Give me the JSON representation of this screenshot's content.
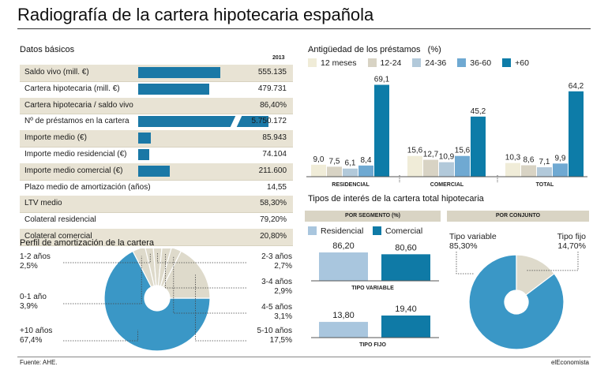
{
  "title": "Radiografía de la cartera hipotecaria española",
  "basic": {
    "heading": "Datos básicos",
    "year": "2013",
    "rows": [
      {
        "label": "Saldo vivo (mill. €)",
        "value": "555.135",
        "bar": 555135,
        "max": 555135,
        "shaded": true
      },
      {
        "label": "Cartera hipotecaria (mill. €)",
        "value": "479.731",
        "bar": 479731,
        "max": 555135,
        "shaded": false
      },
      {
        "label": "Cartera hipotecaria / saldo vivo",
        "value": "86,40%",
        "shaded": true
      },
      {
        "label": "Nº de préstamos en la cartera",
        "value": "5.750.172",
        "bar": 5750172,
        "broken": true,
        "shaded": false
      },
      {
        "label": "Importe medio (€)",
        "value": "85.943",
        "bar": 85943,
        "max": 555135,
        "shaded": true
      },
      {
        "label": "Importe medio residencial (€)",
        "value": "74.104",
        "bar": 74104,
        "max": 555135,
        "shaded": false
      },
      {
        "label": "Importe medio comercial (€)",
        "value": "211.600",
        "bar": 211600,
        "max": 555135,
        "shaded": true
      },
      {
        "label": "Plazo medio de amortización (años)",
        "value": "14,55",
        "shaded": false
      },
      {
        "label": "LTV medio",
        "value": "58,30%",
        "shaded": true
      },
      {
        "label": "Colateral residencial",
        "value": "79,20%",
        "shaded": false
      },
      {
        "label": "Colateral comercial",
        "value": "20,80%",
        "shaded": true
      }
    ]
  },
  "colors": {
    "bar": "#1a78a6",
    "shade": "#e8e3d4",
    "c1": "#f0ecd8",
    "c2": "#d8d3c4",
    "c3": "#b2c9da",
    "c4": "#6fa9d2",
    "c5": "#0d7ca8",
    "residencial": "#a9c6de",
    "comercial": "#0f7aa6",
    "pie_main": "#3a97c6",
    "pie_beige": "#dedacb"
  },
  "chart_data": [
    {
      "type": "bar",
      "title": "Antigüedad de los préstamos",
      "title_unit": "(%)",
      "categories": [
        "RESIDENCIAL",
        "COMERCIAL",
        "TOTAL"
      ],
      "series": [
        {
          "name": "12 meses",
          "values": [
            9.0,
            15.6,
            10.3
          ],
          "labels": [
            "9,0",
            "15,6",
            "10,3"
          ]
        },
        {
          "name": "12-24",
          "values": [
            7.5,
            12.7,
            8.6
          ],
          "labels": [
            "7,5",
            "12,7",
            "8,6"
          ]
        },
        {
          "name": "24-36",
          "values": [
            6.1,
            10.9,
            7.1
          ],
          "labels": [
            "6,1",
            "10,9",
            "7,1"
          ]
        },
        {
          "name": "36-60",
          "values": [
            8.4,
            15.6,
            9.9
          ],
          "labels": [
            "8,4",
            "15,6",
            "9,9"
          ]
        },
        {
          "name": "+60",
          "values": [
            69.1,
            45.2,
            64.2
          ],
          "labels": [
            "69,1",
            "45,2",
            "64,2"
          ]
        }
      ],
      "ylim": [
        0,
        70
      ]
    },
    {
      "type": "pie",
      "title": "Perfil de amortización de la cartera",
      "slices": [
        {
          "label": "+10 años",
          "value": 67.4,
          "text": "67,4%"
        },
        {
          "label": "0-1 año",
          "value": 3.9,
          "text": "3,9%"
        },
        {
          "label": "1-2 años",
          "value": 2.5,
          "text": "2,5%"
        },
        {
          "label": "2-3 años",
          "value": 2.7,
          "text": "2,7%"
        },
        {
          "label": "3-4 años",
          "value": 2.9,
          "text": "2,9%"
        },
        {
          "label": "4-5 años",
          "value": 3.1,
          "text": "3,1%"
        },
        {
          "label": "5-10 años",
          "value": 17.5,
          "text": "17,5%"
        }
      ]
    },
    {
      "type": "bar",
      "title": "Tipos de interés de la cartera total hipotecaria",
      "panel": "POR SEGMENTO (%)",
      "series": [
        {
          "name": "Residencial",
          "values": [
            86.2,
            13.8
          ],
          "labels": [
            "86,20",
            "13,80"
          ]
        },
        {
          "name": "Comercial",
          "values": [
            80.6,
            19.4
          ],
          "labels": [
            "80,60",
            "19,40"
          ]
        }
      ],
      "categories": [
        "TIPO VARIABLE",
        "TIPO FIJO"
      ]
    },
    {
      "type": "pie",
      "panel": "POR CONJUNTO",
      "slices": [
        {
          "label": "Tipo variable",
          "value": 85.3,
          "text": "85,30%"
        },
        {
          "label": "Tipo fijo",
          "value": 14.7,
          "text": "14,70%"
        }
      ]
    }
  ],
  "footer": {
    "source": "Fuente: AHE.",
    "brand": "elEconomista"
  }
}
